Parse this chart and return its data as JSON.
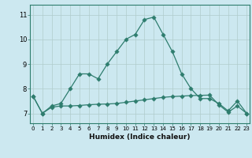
{
  "xlabel": "Humidex (Indice chaleur)",
  "bg_color": "#cce8f0",
  "line_color": "#2e7d6e",
  "grid_color": "#b0cccc",
  "x_ticks": [
    0,
    1,
    2,
    3,
    4,
    5,
    6,
    7,
    8,
    9,
    10,
    11,
    12,
    13,
    14,
    15,
    16,
    17,
    18,
    19,
    20,
    21,
    22,
    23
  ],
  "y_ticks": [
    7,
    8,
    9,
    10,
    11
  ],
  "ylim": [
    6.6,
    11.4
  ],
  "xlim": [
    -0.3,
    23.3
  ],
  "series1": [
    7.7,
    7.0,
    7.3,
    7.4,
    8.0,
    8.6,
    8.6,
    8.4,
    9.0,
    9.5,
    10.0,
    10.2,
    10.8,
    10.9,
    10.2,
    9.5,
    8.6,
    8.0,
    7.6,
    7.6,
    7.4,
    7.1,
    7.5,
    7.0
  ],
  "series2": [
    7.7,
    7.0,
    7.25,
    7.3,
    7.3,
    7.32,
    7.35,
    7.37,
    7.38,
    7.4,
    7.45,
    7.5,
    7.55,
    7.6,
    7.65,
    7.68,
    7.7,
    7.72,
    7.73,
    7.74,
    7.35,
    7.05,
    7.3,
    7.0
  ]
}
